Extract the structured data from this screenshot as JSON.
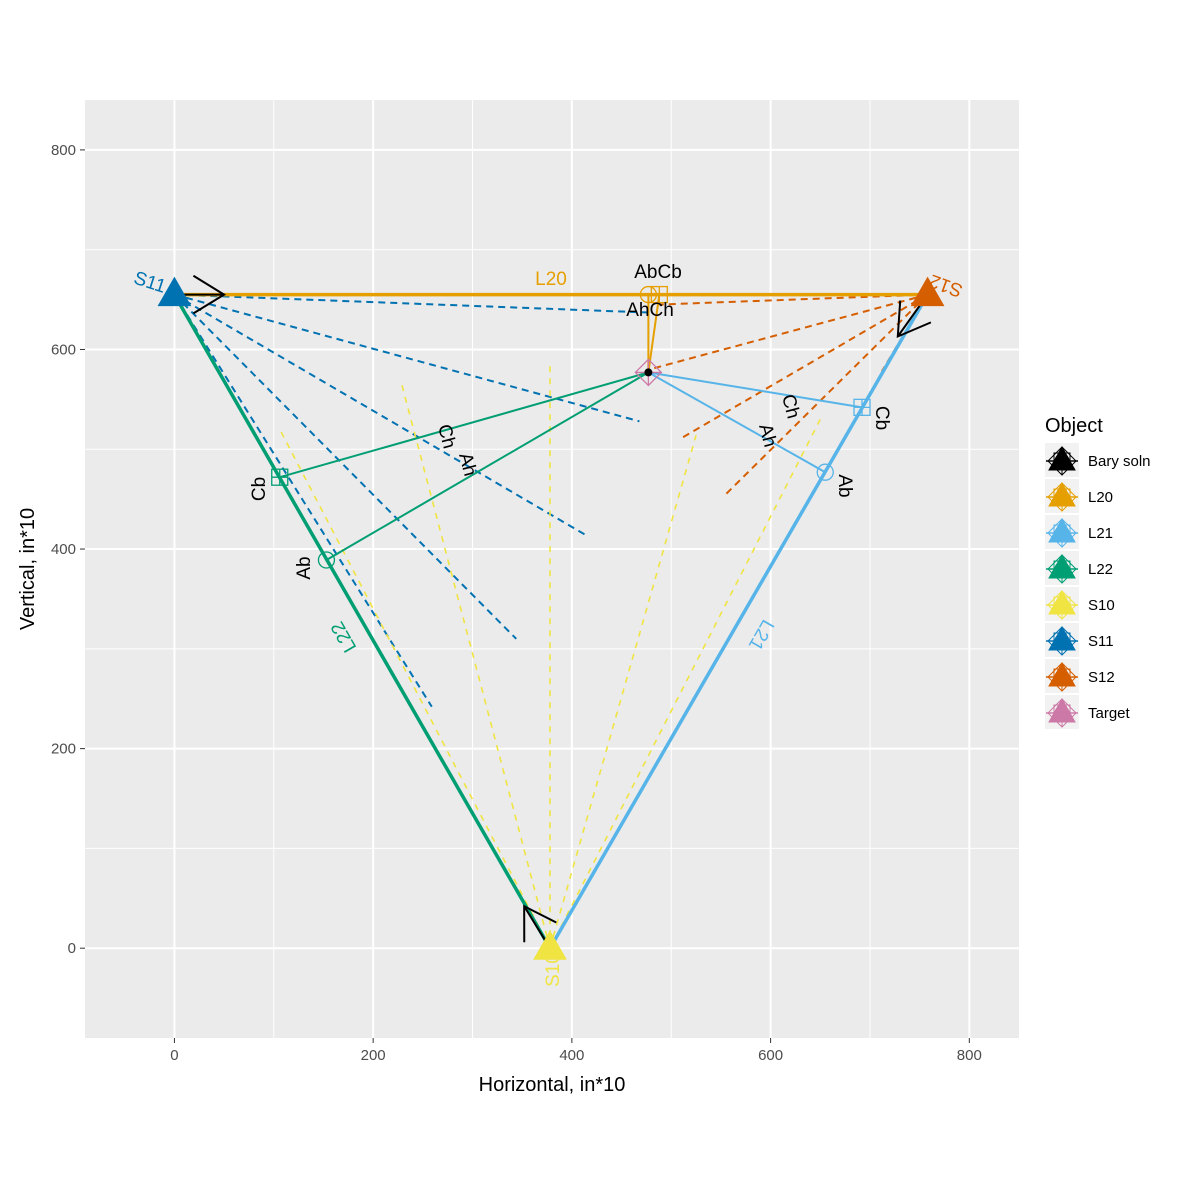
{
  "chart_data": {
    "type": "scatter",
    "xlabel": "Horizontal, in*10",
    "ylabel": "Vertical, in*10",
    "xlim": [
      -90,
      850
    ],
    "ylim": [
      -90,
      850
    ],
    "xticks": [
      0,
      200,
      400,
      600,
      800
    ],
    "yticks": [
      0,
      200,
      400,
      600,
      800
    ],
    "xtick_labels": [
      "0",
      "200",
      "400",
      "600",
      "800"
    ],
    "ytick_labels": [
      "0",
      "200",
      "400",
      "600",
      "800"
    ],
    "legend": {
      "title": "Object",
      "position": "right",
      "entries": [
        {
          "label": "Bary soln",
          "color": "#000000"
        },
        {
          "label": "L20",
          "color": "#E69F00"
        },
        {
          "label": "L21",
          "color": "#56B4E9"
        },
        {
          "label": "L22",
          "color": "#009E73"
        },
        {
          "label": "S10",
          "color": "#F0E442"
        },
        {
          "label": "S11",
          "color": "#0072B2"
        },
        {
          "label": "S12",
          "color": "#D55E00"
        },
        {
          "label": "Target",
          "color": "#CC79A7"
        }
      ]
    },
    "sensors": [
      {
        "name": "S11",
        "x": 0,
        "y": 655,
        "color": "#0072B2"
      },
      {
        "name": "S12",
        "x": 758,
        "y": 655,
        "color": "#D55E00"
      },
      {
        "name": "S10",
        "x": 378,
        "y": 0,
        "color": "#F0E442"
      }
    ],
    "legs": [
      {
        "name": "L20",
        "from": [
          0,
          655
        ],
        "to": [
          758,
          655
        ],
        "color": "#E69F00"
      },
      {
        "name": "L21",
        "from": [
          378,
          0
        ],
        "to": [
          758,
          655
        ],
        "color": "#56B4E9"
      },
      {
        "name": "L22",
        "from": [
          0,
          655
        ],
        "to": [
          378,
          0
        ],
        "color": "#009E73"
      }
    ],
    "direction_arrows": [
      {
        "at": [
          0,
          655
        ],
        "toward": [
          50,
          655
        ]
      },
      {
        "at": [
          758,
          655
        ],
        "toward": [
          728,
          613
        ]
      },
      {
        "at": [
          378,
          0
        ],
        "toward": [
          352,
          42
        ]
      }
    ],
    "bearing_lines": [
      {
        "sensor": "S11",
        "color": "#0072B2",
        "ends": [
          [
            477,
            637
          ],
          [
            468,
            528
          ],
          [
            414,
            414
          ],
          [
            344,
            310
          ],
          [
            259,
            242
          ]
        ]
      },
      {
        "sensor": "S12",
        "color": "#D55E00",
        "ends": [
          [
            488,
            645
          ],
          [
            478,
            580
          ],
          [
            510,
            511
          ],
          [
            555,
            455
          ],
          [
            712,
            578
          ]
        ]
      },
      {
        "sensor": "S10",
        "color": "#F0E442",
        "ends": [
          [
            228,
            568
          ],
          [
            106,
            520
          ],
          [
            378,
            588
          ],
          [
            525,
            514
          ],
          [
            650,
            530
          ]
        ]
      }
    ],
    "bary_solution": {
      "x": 477,
      "y": 577
    },
    "target": {
      "x": 477,
      "y": 577
    },
    "points": [
      {
        "leg": "L20",
        "kind": "Ab",
        "x": 477,
        "y": 655,
        "marker": "circle",
        "color": "#E69F00"
      },
      {
        "leg": "L20",
        "kind": "Cb",
        "x": 488,
        "y": 655,
        "marker": "square",
        "color": "#E69F00"
      },
      {
        "leg": "L21",
        "kind": "Ab",
        "x": 655,
        "y": 477,
        "marker": "circle",
        "color": "#56B4E9"
      },
      {
        "leg": "L21",
        "kind": "Cb",
        "x": 692,
        "y": 542,
        "marker": "square",
        "color": "#56B4E9"
      },
      {
        "leg": "L22",
        "kind": "Ab",
        "x": 153,
        "y": 389,
        "marker": "circle",
        "color": "#009E73"
      },
      {
        "leg": "L22",
        "kind": "Cb",
        "x": 106,
        "y": 472,
        "marker": "square",
        "color": "#009E73"
      }
    ],
    "annotations": {
      "leg_labels": [
        "L20",
        "L21",
        "L22"
      ],
      "sensor_labels": [
        "S11",
        "S12",
        "S10"
      ],
      "l20_top": "AbCb",
      "l20_bottom": "AhCh",
      "l21_ab": "Ab",
      "l21_cb": "Cb",
      "l21_ah": "Ah",
      "l21_ch": "Ch",
      "l22_ab": "Ab",
      "l22_cb": "Cb",
      "l22_ah": "Ah",
      "l22_ch": "Ch"
    }
  }
}
